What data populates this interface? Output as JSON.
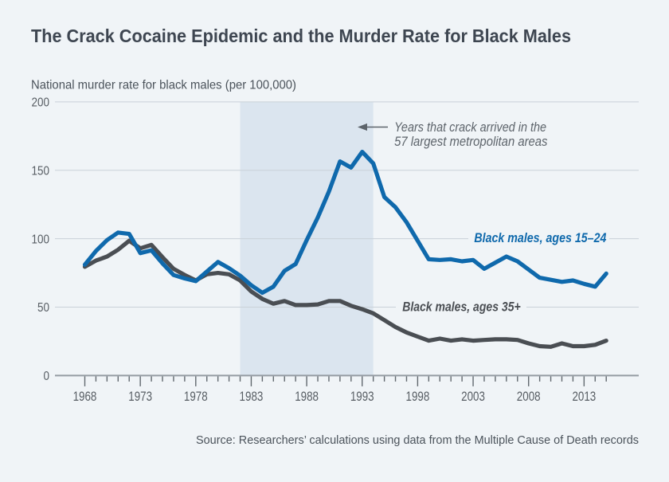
{
  "title": "The Crack Cocaine Epidemic and the Murder Rate for Black Males",
  "y_axis_label": "National murder rate for black males (per 100,000)",
  "source_note": "Source: Researchers’ calculations using data from the Multiple Cause of Death records",
  "annotation": {
    "line1": "Years that crack arrived in the",
    "line2": "57 largest metropolitan areas"
  },
  "colors": {
    "background": "#f0f4f7",
    "shaded_band": "#dbe5ef",
    "gridline": "#c9d1d8",
    "axis_line": "#959ca3",
    "tick": "#61686e",
    "title_text": "#3e4651",
    "label_text": "#4b535b",
    "tick_label_text": "#575d63",
    "annotation_text": "#5d646b",
    "series_young": "#0f69ac",
    "series_old": "#4a4e53"
  },
  "chart_data": {
    "type": "line",
    "title": "The Crack Cocaine Epidemic and the Murder Rate for Black Males",
    "ylabel": "National murder rate for black males (per 100,000)",
    "xlabel": "",
    "ylim": [
      0,
      200
    ],
    "yticks": [
      0,
      50,
      100,
      150,
      200
    ],
    "xticks_labeled": [
      1968,
      1973,
      1978,
      1983,
      1988,
      1993,
      1998,
      2003,
      2008,
      2013
    ],
    "grid": "horizontal",
    "x": [
      1968,
      1969,
      1970,
      1971,
      1972,
      1973,
      1974,
      1975,
      1976,
      1977,
      1978,
      1979,
      1980,
      1981,
      1982,
      1983,
      1984,
      1985,
      1986,
      1987,
      1988,
      1989,
      1990,
      1991,
      1992,
      1993,
      1994,
      1995,
      1996,
      1997,
      1998,
      1999,
      2000,
      2001,
      2002,
      2003,
      2004,
      2005,
      2006,
      2007,
      2008,
      2009,
      2010,
      2011,
      2012,
      2013,
      2014,
      2015
    ],
    "series": [
      {
        "name": "Black males, ages 15–24",
        "color": "#0f69ac",
        "values": [
          81,
          91,
          99,
          104.5,
          103.5,
          89.5,
          91.5,
          82,
          73.5,
          71,
          69,
          76,
          83,
          78.5,
          73,
          66,
          60.5,
          65,
          76.5,
          81.5,
          99,
          115.5,
          134.5,
          156.5,
          152,
          163.5,
          155,
          130.5,
          123,
          112,
          98.5,
          85,
          84.5,
          85,
          83.5,
          84.5,
          78,
          82.5,
          87,
          83.5,
          77.5,
          71.5,
          70,
          68.5,
          69.5,
          67,
          65,
          74.5
        ]
      },
      {
        "name": "Black males, ages 35+",
        "color": "#4a4e53",
        "values": [
          79.5,
          84,
          87,
          92,
          98.5,
          93,
          95.5,
          86.5,
          78,
          73.5,
          69.5,
          74,
          75,
          74,
          69.5,
          61.5,
          56,
          52.5,
          54.5,
          51.5,
          51.5,
          52,
          54.5,
          54.5,
          51,
          48.5,
          45.5,
          40.5,
          35.5,
          31.5,
          28.5,
          25.5,
          27,
          25.5,
          26.5,
          25.5,
          26,
          26.5,
          26.5,
          26,
          23.5,
          21.5,
          21,
          23.5,
          21.5,
          21.5,
          22.5,
          25.5
        ]
      }
    ],
    "shaded_region": {
      "x0": 1982,
      "x1": 1994,
      "annotation": "Years that crack arrived in the 57 largest metropolitan areas"
    },
    "legend_position": "inline-labels"
  }
}
